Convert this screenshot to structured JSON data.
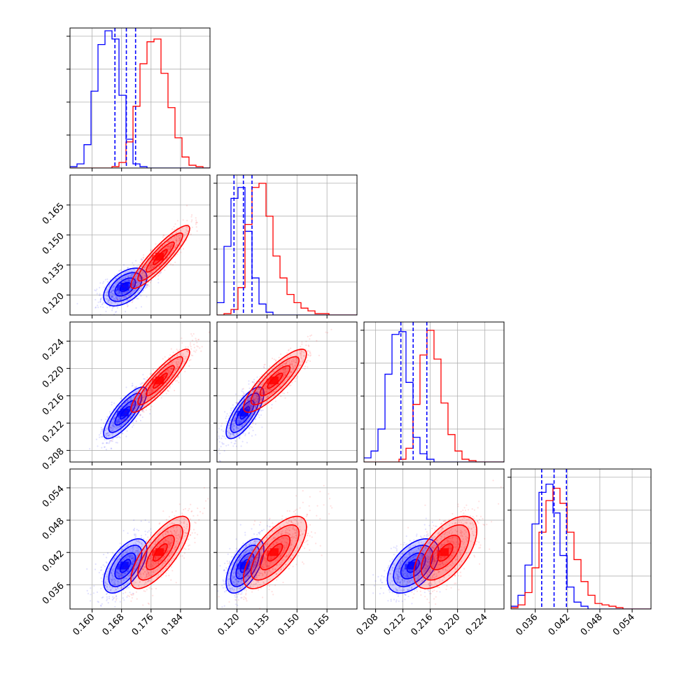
{
  "chart_data": {
    "type": "corner",
    "grid": true,
    "series": [
      {
        "name": "",
        "color": "#0000ff",
        "mean": [
          0.169,
          0.124,
          0.2135,
          0.0395
        ],
        "sd": [
          0.0028,
          0.0045,
          0.0018,
          0.0024
        ],
        "quantiles": [
          [
            0.1662,
            0.1693,
            0.1718
          ],
          [
            0.1185,
            0.1232,
            0.1275
          ],
          [
            0.2117,
            0.2135,
            0.2155
          ],
          [
            0.0372,
            0.0395,
            0.0418
          ]
        ],
        "corr": {
          "1-0": 0.5,
          "2-0": 0.8,
          "2-1": 0.75,
          "3-0": 0.6,
          "3-1": 0.6,
          "3-2": 0.5
        }
      },
      {
        "name": "",
        "color": "#ff0000",
        "mean": [
          0.1785,
          0.139,
          0.2182,
          0.042
        ],
        "sd": [
          0.0038,
          0.0075,
          0.0022,
          0.0032
        ],
        "corr": {
          "1-0": 0.9,
          "2-0": 0.9,
          "2-1": 0.85,
          "3-0": 0.75,
          "3-1": 0.7,
          "3-2": 0.6
        }
      }
    ],
    "panels": [
      {
        "row": 0,
        "col": 0,
        "type": "hist",
        "param": 0,
        "bins": {
          "blue": [
            0.01,
            0.03,
            0.17,
            0.56,
            0.9,
            1.0,
            0.94,
            0.53,
            0.21,
            0.03,
            0.01,
            0,
            0,
            0,
            0,
            0,
            0,
            0,
            0,
            0
          ],
          "red": [
            0,
            0,
            0,
            0,
            0,
            0,
            0.01,
            0.04,
            0.19,
            0.45,
            0.76,
            0.92,
            0.94,
            0.69,
            0.44,
            0.22,
            0.08,
            0.02,
            0.01,
            0
          ]
        }
      },
      {
        "row": 1,
        "col": 0,
        "type": "2d",
        "x": 0,
        "y": 1
      },
      {
        "row": 1,
        "col": 1,
        "type": "hist",
        "param": 1,
        "bins": {
          "blue": [
            0.09,
            0.5,
            0.85,
            0.93,
            0.61,
            0.27,
            0.08,
            0.02,
            0,
            0,
            0,
            0,
            0,
            0,
            0,
            0,
            0,
            0,
            0,
            0
          ],
          "red": [
            0,
            0.01,
            0.04,
            0.2,
            0.66,
            0.93,
            0.96,
            0.72,
            0.43,
            0.27,
            0.15,
            0.09,
            0.05,
            0.03,
            0.01,
            0.01,
            0,
            0,
            0,
            0
          ]
        }
      },
      {
        "row": 2,
        "col": 0,
        "type": "2d",
        "x": 0,
        "y": 2
      },
      {
        "row": 2,
        "col": 1,
        "type": "2d",
        "x": 1,
        "y": 2
      },
      {
        "row": 2,
        "col": 2,
        "type": "hist",
        "param": 2,
        "bins": {
          "blue": [
            0.03,
            0.08,
            0.24,
            0.64,
            0.93,
            0.95,
            0.58,
            0.18,
            0.06,
            0.02,
            0,
            0,
            0,
            0,
            0,
            0,
            0,
            0,
            0,
            0
          ],
          "red": [
            0,
            0,
            0,
            0,
            0,
            0.02,
            0.1,
            0.42,
            0.78,
            0.96,
            0.75,
            0.43,
            0.2,
            0.08,
            0.02,
            0.01,
            0,
            0,
            0,
            0
          ]
        }
      },
      {
        "row": 3,
        "col": 0,
        "type": "2d",
        "x": 0,
        "y": 3
      },
      {
        "row": 3,
        "col": 1,
        "type": "2d",
        "x": 1,
        "y": 3
      },
      {
        "row": 3,
        "col": 2,
        "type": "2d",
        "x": 2,
        "y": 3
      },
      {
        "row": 3,
        "col": 3,
        "type": "hist",
        "param": 3,
        "bins": {
          "blue": [
            0.02,
            0.1,
            0.32,
            0.62,
            0.85,
            0.91,
            0.7,
            0.39,
            0.16,
            0.05,
            0.02,
            0,
            0,
            0,
            0,
            0,
            0,
            0,
            0,
            0
          ],
          "red": [
            0.01,
            0.03,
            0.12,
            0.3,
            0.56,
            0.79,
            0.88,
            0.77,
            0.56,
            0.36,
            0.2,
            0.1,
            0.04,
            0.03,
            0.02,
            0.01,
            0,
            0,
            0,
            0
          ]
        }
      }
    ],
    "axes": [
      {
        "range": [
          0.154,
          0.192
        ],
        "ticks": [
          0.16,
          0.168,
          0.176,
          0.184
        ],
        "ticklabels": [
          "0.160",
          "0.168",
          "0.176",
          "0.184"
        ]
      },
      {
        "range": [
          0.11,
          0.18
        ],
        "ticks": [
          0.12,
          0.135,
          0.15,
          0.165
        ],
        "ticklabels": [
          "0.120",
          "0.135",
          "0.150",
          "0.165"
        ]
      },
      {
        "range": [
          0.2063,
          0.2268
        ],
        "ticks": [
          0.208,
          0.212,
          0.216,
          0.22,
          0.224
        ],
        "ticklabels": [
          "0.208",
          "0.212",
          "0.216",
          "0.220",
          "0.224"
        ]
      },
      {
        "range": [
          0.0315,
          0.0575
        ],
        "ticks": [
          0.036,
          0.042,
          0.048,
          0.054
        ],
        "ticklabels": [
          "0.036",
          "0.042",
          "0.048",
          "0.054"
        ]
      }
    ],
    "hist_yticks": 4
  }
}
